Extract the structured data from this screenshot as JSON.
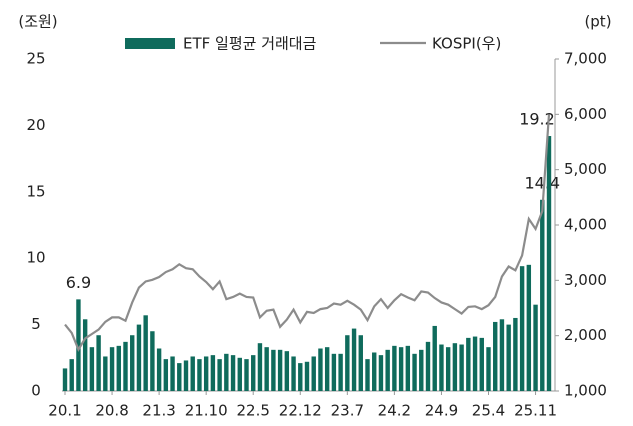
{
  "chart_data": {
    "type": "bar_line",
    "y_label": "(조원)",
    "y2_label": "(pt)",
    "categories": [
      "20.1",
      null,
      null,
      null,
      null,
      null,
      null,
      "20.8",
      null,
      null,
      null,
      null,
      null,
      null,
      "21.3",
      null,
      null,
      null,
      null,
      null,
      null,
      "21.10",
      null,
      null,
      null,
      null,
      null,
      null,
      "22.5",
      null,
      null,
      null,
      null,
      null,
      null,
      "22.12",
      null,
      null,
      null,
      null,
      null,
      null,
      "23.7",
      null,
      null,
      null,
      null,
      null,
      null,
      "24.2",
      null,
      null,
      null,
      null,
      null,
      null,
      "24.9",
      null,
      null,
      null,
      null,
      null,
      null,
      "25.4",
      null,
      null,
      null,
      null,
      null,
      null,
      "25.11",
      null,
      null
    ],
    "series": [
      {
        "name": "ETF 일평균 거래대금",
        "type": "bar",
        "color": "#0f6b5c",
        "values": [
          1.7,
          2.4,
          6.9,
          5.4,
          3.3,
          4.2,
          2.6,
          3.3,
          3.4,
          3.7,
          4.2,
          5.0,
          5.7,
          4.5,
          3.2,
          2.4,
          2.6,
          2.1,
          2.3,
          2.6,
          2.4,
          2.6,
          2.7,
          2.4,
          2.8,
          2.7,
          2.5,
          2.4,
          2.7,
          3.6,
          3.3,
          3.1,
          3.1,
          3.0,
          2.6,
          2.1,
          2.2,
          2.6,
          3.2,
          3.3,
          2.8,
          2.8,
          4.2,
          4.7,
          4.2,
          2.4,
          2.9,
          2.7,
          3.1,
          3.4,
          3.3,
          3.4,
          2.8,
          3.1,
          3.7,
          4.9,
          3.5,
          3.3,
          3.6,
          3.5,
          4.0,
          4.1,
          4.0,
          3.3,
          5.2,
          5.4,
          5.0,
          5.5,
          9.4,
          9.5,
          6.5,
          14.4,
          19.2
        ],
        "value_labels": [
          null,
          null,
          "6.9",
          null,
          null,
          null,
          null,
          null,
          null,
          null,
          null,
          null,
          null,
          null,
          null,
          null,
          null,
          null,
          null,
          null,
          null,
          null,
          null,
          null,
          null,
          null,
          null,
          null,
          null,
          null,
          null,
          null,
          null,
          null,
          null,
          null,
          null,
          null,
          null,
          null,
          null,
          null,
          null,
          null,
          null,
          null,
          null,
          null,
          null,
          null,
          null,
          null,
          null,
          null,
          null,
          null,
          null,
          null,
          null,
          null,
          null,
          null,
          null,
          null,
          null,
          null,
          null,
          null,
          null,
          null,
          null,
          "14.4",
          "19.2"
        ]
      },
      {
        "name": "KOSPI(우)",
        "type": "line",
        "axis": "y2",
        "color": "#8c8c8c",
        "values": [
          2200,
          2050,
          1750,
          1950,
          2030,
          2110,
          2250,
          2330,
          2330,
          2270,
          2600,
          2870,
          2980,
          3010,
          3060,
          3150,
          3200,
          3290,
          3220,
          3200,
          3070,
          2970,
          2840,
          2980,
          2660,
          2700,
          2760,
          2700,
          2690,
          2330,
          2450,
          2470,
          2160,
          2290,
          2470,
          2240,
          2430,
          2410,
          2480,
          2500,
          2580,
          2560,
          2630,
          2560,
          2470,
          2280,
          2530,
          2660,
          2500,
          2640,
          2750,
          2690,
          2640,
          2800,
          2780,
          2680,
          2600,
          2560,
          2480,
          2400,
          2520,
          2530,
          2480,
          2550,
          2700,
          3070,
          3250,
          3180,
          3450,
          4110,
          3930,
          4250,
          6000
        ]
      }
    ],
    "ylim": [
      0,
      25
    ],
    "yticks": [
      0,
      5,
      10,
      15,
      20,
      25
    ],
    "y2lim": [
      1000,
      7000
    ],
    "y2ticks": [
      {
        "value": 1000,
        "label": "1,000"
      },
      {
        "value": 2000,
        "label": "2,000"
      },
      {
        "value": 3000,
        "label": "3,000"
      },
      {
        "value": 4000,
        "label": "4,000"
      },
      {
        "value": 5000,
        "label": "5,000"
      },
      {
        "value": 6000,
        "label": "6,000"
      },
      {
        "value": 7000,
        "label": "7,000"
      }
    ]
  }
}
